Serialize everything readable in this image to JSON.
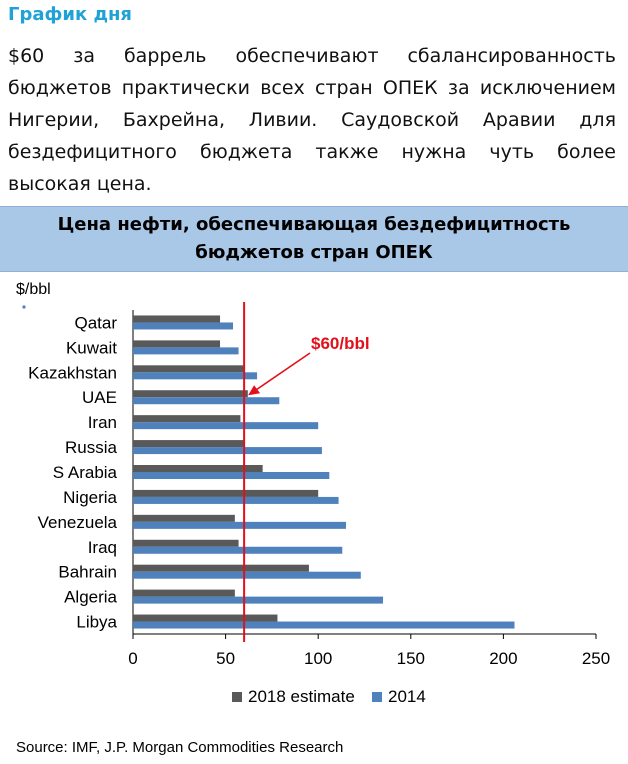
{
  "header": {
    "label": "График дня",
    "text": "$60 за баррель обеспечивают сбалансированность бюджетов практически всех стран ОПЕК за исключением Нигерии, Бахрейна, Ливии. Саудовской Аравии для бездефицитного бюджета также нужна чуть более высокая цена."
  },
  "banner": {
    "title": "Цена нефти, обеспечивающая бездефицитность бюджетов стран ОПЕК"
  },
  "chart_data": {
    "type": "bar",
    "orientation": "horizontal",
    "unit_label": "$/bbl",
    "categories": [
      "Qatar",
      "Kuwait",
      "Kazakhstan",
      "UAE",
      "Iran",
      "Russia",
      "S Arabia",
      "Nigeria",
      "Venezuela",
      "Iraq",
      "Bahrain",
      "Algeria",
      "Libya"
    ],
    "series": [
      {
        "name": "2018 estimate",
        "color": "#595959",
        "values": [
          47,
          47,
          60,
          62,
          58,
          60,
          70,
          100,
          55,
          57,
          95,
          55,
          78
        ]
      },
      {
        "name": "2014",
        "color": "#4f81bd",
        "values": [
          54,
          57,
          67,
          79,
          100,
          102,
          106,
          111,
          115,
          113,
          123,
          135,
          206
        ]
      }
    ],
    "xlim": [
      0,
      250
    ],
    "xticks": [
      0,
      50,
      100,
      150,
      200,
      250
    ],
    "reference_line": {
      "value": 60,
      "label": "$60/bbl",
      "color": "#e3101b"
    },
    "legend_position": "bottom",
    "source": "Source: IMF, J.P. Morgan Commodities Research"
  }
}
